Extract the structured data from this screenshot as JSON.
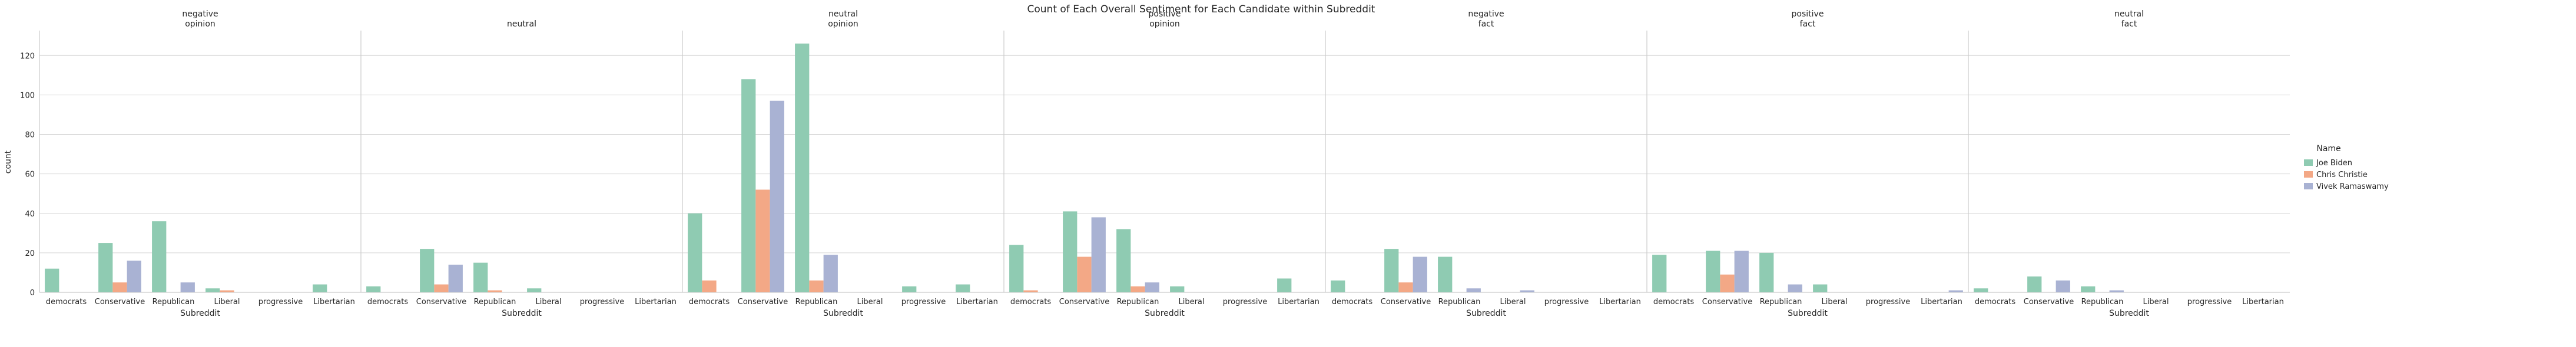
{
  "chart_data": {
    "type": "bar",
    "title": "Count of Each Overall Sentiment for Each Candidate within Subreddit",
    "xlabel": "Subreddit",
    "ylabel": "count",
    "ylim": [
      0,
      132
    ],
    "yticks": [
      0,
      20,
      40,
      60,
      80,
      100,
      120
    ],
    "grid": true,
    "categories": [
      "democrats",
      "Conservative",
      "Republican",
      "Liberal",
      "progressive",
      "Libertarian"
    ],
    "legend": {
      "title": "Name",
      "placement": "right",
      "entries": [
        "Joe Biden",
        "Chris Christie",
        "Vivek Ramaswamy"
      ]
    },
    "colors": {
      "Joe Biden": "#8fcbb2",
      "Chris Christie": "#f3a886",
      "Vivek Ramaswamy": "#a9b2d3"
    },
    "panels": [
      {
        "title": "negative\nopinion",
        "series": [
          {
            "name": "Joe Biden",
            "values": [
              12,
              25,
              36,
              2,
              0,
              4
            ]
          },
          {
            "name": "Chris Christie",
            "values": [
              0,
              5,
              0,
              1,
              0,
              0
            ]
          },
          {
            "name": "Vivek Ramaswamy",
            "values": [
              0,
              16,
              5,
              0,
              0,
              0
            ]
          }
        ]
      },
      {
        "title": "neutral",
        "series": [
          {
            "name": "Joe Biden",
            "values": [
              3,
              22,
              15,
              2,
              0,
              0
            ]
          },
          {
            "name": "Chris Christie",
            "values": [
              0,
              4,
              1,
              0,
              0,
              0
            ]
          },
          {
            "name": "Vivek Ramaswamy",
            "values": [
              0,
              14,
              0,
              0,
              0,
              0
            ]
          }
        ]
      },
      {
        "title": "neutral\nopinion",
        "series": [
          {
            "name": "Joe Biden",
            "values": [
              40,
              108,
              126,
              0,
              3,
              4
            ]
          },
          {
            "name": "Chris Christie",
            "values": [
              6,
              52,
              6,
              0,
              0,
              0
            ]
          },
          {
            "name": "Vivek Ramaswamy",
            "values": [
              0,
              97,
              19,
              0,
              0,
              0
            ]
          }
        ]
      },
      {
        "title": "positive\nopinion",
        "series": [
          {
            "name": "Joe Biden",
            "values": [
              24,
              41,
              32,
              3,
              0,
              7
            ]
          },
          {
            "name": "Chris Christie",
            "values": [
              1,
              18,
              3,
              0,
              0,
              0
            ]
          },
          {
            "name": "Vivek Ramaswamy",
            "values": [
              0,
              38,
              5,
              0,
              0,
              0
            ]
          }
        ]
      },
      {
        "title": "negative\nfact",
        "series": [
          {
            "name": "Joe Biden",
            "values": [
              6,
              22,
              18,
              0,
              0,
              0
            ]
          },
          {
            "name": "Chris Christie",
            "values": [
              0,
              5,
              0,
              0,
              0,
              0
            ]
          },
          {
            "name": "Vivek Ramaswamy",
            "values": [
              0,
              18,
              2,
              1,
              0,
              0
            ]
          }
        ]
      },
      {
        "title": "positive\nfact",
        "series": [
          {
            "name": "Joe Biden",
            "values": [
              19,
              21,
              20,
              4,
              0,
              0
            ]
          },
          {
            "name": "Chris Christie",
            "values": [
              0,
              9,
              0,
              0,
              0,
              0
            ]
          },
          {
            "name": "Vivek Ramaswamy",
            "values": [
              0,
              21,
              4,
              0,
              0,
              1
            ]
          }
        ]
      },
      {
        "title": "neutral\nfact",
        "series": [
          {
            "name": "Joe Biden",
            "values": [
              2,
              8,
              3,
              0,
              0,
              0
            ]
          },
          {
            "name": "Chris Christie",
            "values": [
              0,
              0,
              0,
              0,
              0,
              0
            ]
          },
          {
            "name": "Vivek Ramaswamy",
            "values": [
              0,
              6,
              1,
              0,
              0,
              0
            ]
          }
        ]
      }
    ]
  }
}
